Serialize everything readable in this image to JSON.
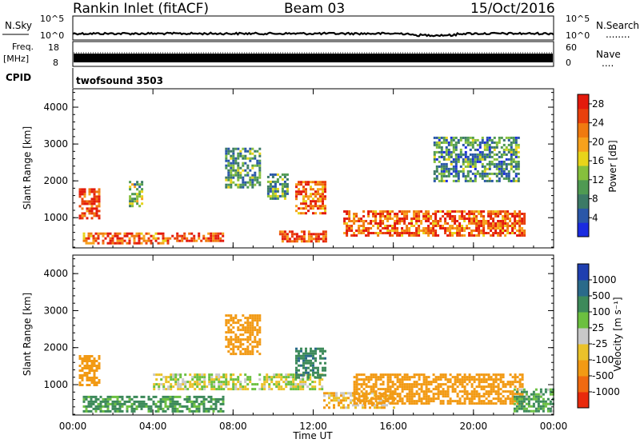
{
  "header": {
    "station": "Rankin Inlet (fitACF)",
    "beam": "Beam 03",
    "date": "15/Oct/2016"
  },
  "panels": {
    "nsky_label": "N.Sky",
    "nsearch_label": "N.Search",
    "nsearch_dots": "........",
    "noise_ticks_left": [
      "10^5",
      "10^0"
    ],
    "noise_ticks_right": [
      "10^5",
      "10^0"
    ],
    "freq_label": "Freq.",
    "freq_unit": "[MHz]",
    "freq_ticks": [
      "18",
      "8"
    ],
    "nave_label": "Nave",
    "nave_dots": "....",
    "nave_ticks": [
      "60",
      "0"
    ],
    "cpid_label": "CPID",
    "cpid_value": "twofsound 3503"
  },
  "colors": {
    "power_scale": [
      "#1a2be0",
      "#2a57a8",
      "#3c7a66",
      "#4f9a52",
      "#86c03c",
      "#e8d41a",
      "#f7a11c",
      "#f07a10",
      "#e9400c",
      "#e31a0c"
    ],
    "velocity_scale": [
      "#1f3fb0",
      "#2a6a8a",
      "#3d8a5a",
      "#6cc040",
      "#c8c8c8",
      "#eac22a",
      "#f29a14",
      "#f06a10",
      "#e82a0c"
    ]
  },
  "chart_data": [
    {
      "type": "heatmap",
      "title": "",
      "xlabel": "",
      "ylabel": "Slant Range [km]",
      "xlim": [
        0,
        24
      ],
      "ylim": [
        180,
        4500
      ],
      "x_ticks": [
        "00:00",
        "04:00",
        "08:00",
        "12:00",
        "16:00",
        "20:00",
        "00:00"
      ],
      "y_ticks": [
        "1000",
        "2000",
        "3000",
        "4000"
      ],
      "colorbar": {
        "label": "Power [dB]",
        "range": [
          0,
          30
        ],
        "ticks": [
          "4",
          "8",
          "12",
          "16",
          "20",
          "24",
          "28"
        ]
      },
      "regions": [
        {
          "t0": 0.3,
          "t1": 1.3,
          "r0": 1000,
          "r1": 1800,
          "value": 27
        },
        {
          "t0": 0.5,
          "t1": 4.8,
          "r0": 300,
          "r1": 600,
          "value": 24
        },
        {
          "t0": 4.8,
          "t1": 7.5,
          "r0": 350,
          "r1": 600,
          "value": 26
        },
        {
          "t0": 10.3,
          "t1": 12.6,
          "r0": 350,
          "r1": 650,
          "value": 25
        },
        {
          "t0": 11.1,
          "t1": 12.6,
          "r0": 1100,
          "r1": 2000,
          "value": 24
        },
        {
          "t0": 13.5,
          "t1": 22.5,
          "r0": 500,
          "r1": 1200,
          "value": 24
        },
        {
          "t0": 7.6,
          "t1": 9.3,
          "r0": 1800,
          "r1": 2900,
          "value": 10
        },
        {
          "t0": 2.8,
          "t1": 3.4,
          "r0": 1300,
          "r1": 2000,
          "value": 12
        },
        {
          "t0": 9.7,
          "t1": 10.7,
          "r0": 1500,
          "r1": 2200,
          "value": 10
        },
        {
          "t0": 18.0,
          "t1": 22.3,
          "r0": 2000,
          "r1": 3200,
          "value": 9
        }
      ]
    },
    {
      "type": "heatmap",
      "title": "",
      "xlabel": "Time UT",
      "ylabel": "Slant Range [km]",
      "xlim": [
        0,
        24
      ],
      "ylim": [
        180,
        4500
      ],
      "x_ticks": [
        "00:00",
        "04:00",
        "08:00",
        "12:00",
        "16:00",
        "20:00",
        "00:00"
      ],
      "y_ticks": [
        "1000",
        "2000",
        "3000",
        "4000"
      ],
      "colorbar": {
        "label": "Velocity [m s⁻¹]",
        "ticks": [
          "1000",
          "500",
          "100",
          "25",
          "-25",
          "-100",
          "-500",
          "-1000"
        ]
      },
      "regions": [
        {
          "t0": 0.3,
          "t1": 1.3,
          "r0": 1000,
          "r1": 1800,
          "value": -300
        },
        {
          "t0": 0.5,
          "t1": 7.5,
          "r0": 300,
          "r1": 700,
          "value": 150
        },
        {
          "t0": 4.0,
          "t1": 12.5,
          "r0": 900,
          "r1": 1300,
          "value": 0
        },
        {
          "t0": 11.1,
          "t1": 12.6,
          "r0": 1200,
          "r1": 2000,
          "value": 400
        },
        {
          "t0": 12.5,
          "t1": 16.0,
          "r0": 350,
          "r1": 800,
          "value": -80
        },
        {
          "t0": 14.0,
          "t1": 22.5,
          "r0": 500,
          "r1": 1300,
          "value": -300
        },
        {
          "t0": 7.6,
          "t1": 9.3,
          "r0": 1800,
          "r1": 2900,
          "value": -200
        },
        {
          "t0": 22.0,
          "t1": 24.0,
          "r0": 300,
          "r1": 900,
          "value": 120
        }
      ]
    }
  ]
}
